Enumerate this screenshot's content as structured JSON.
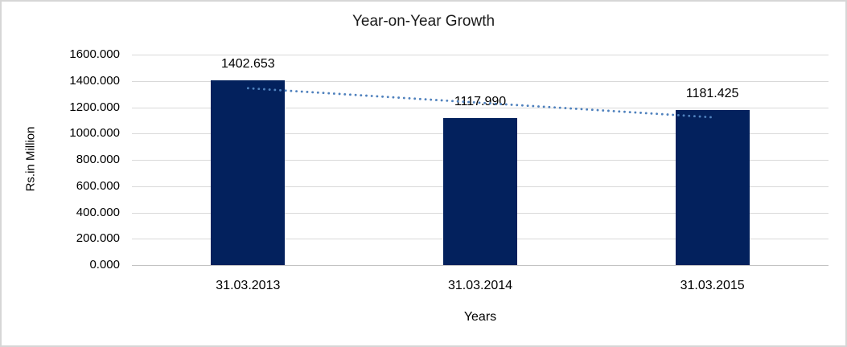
{
  "chart_data": {
    "type": "bar",
    "title": "Year-on-Year Growth",
    "xlabel": "Years",
    "ylabel": "Rs.in Million",
    "categories": [
      "31.03.2013",
      "31.03.2014",
      "31.03.2015"
    ],
    "values": [
      1402.653,
      1117.99,
      1181.425
    ],
    "data_labels": [
      "1402.653",
      "1117.990",
      "1181.425"
    ],
    "ylim": [
      0,
      1600
    ],
    "ytick_step": 200,
    "ytick_labels": [
      "0.000",
      "200.000",
      "400.000",
      "600.000",
      "800.000",
      "1000.000",
      "1200.000",
      "1400.000",
      "1600.000"
    ],
    "grid": true,
    "legend": "none",
    "colors": {
      "bar": "#03215d",
      "trendline": "#4f81bd",
      "gridline": "#d9d9d9",
      "frame_border": "#d6d6d6",
      "text": "#000000"
    },
    "trendline": {
      "kind": "linear",
      "style": "dotted"
    }
  }
}
